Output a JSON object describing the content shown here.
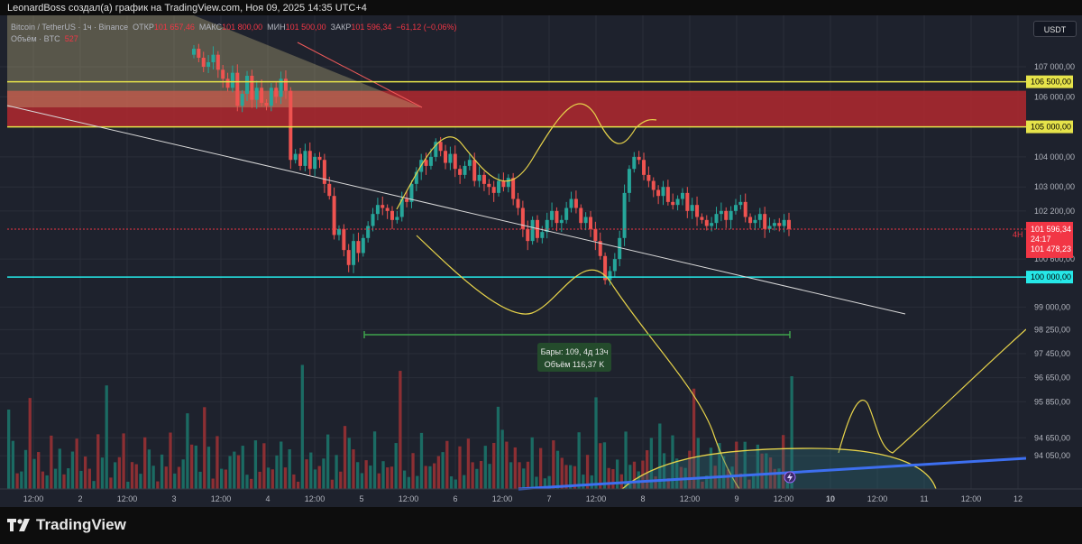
{
  "caption": "LeonardBoss создал(а) график на TradingView.com, Ноя 09, 2025 14:35 UTC+4",
  "legend": {
    "symbol": "Bitcoin / TetherUS · 1ч · Binance",
    "open_label": "ОТКР",
    "open": "101 657,46",
    "high_label": "МАКС",
    "high": "101 800,00",
    "low_label": "МИН",
    "low": "101 500,00",
    "close_label": "ЗАКР",
    "close": "101 596,34",
    "change": "−61,12 (−0,06%)",
    "volume_label": "Объём · BTC",
    "volume": "527"
  },
  "currency": "USDT",
  "measure": {
    "bars": "Бары: 109, 4д 13ч",
    "volume": "Объём 116,37 K"
  },
  "brand": "TradingView",
  "chart_data": {
    "type": "candlestick",
    "symbol": "BTCUSDT",
    "interval": "1h",
    "y_ticks": [
      107000,
      106000,
      104000,
      103000,
      102200,
      100600,
      99000,
      98250,
      97450,
      96650,
      95850,
      94650,
      94050
    ],
    "y_tick_labels": [
      "107 000,00",
      "106 000,00",
      "104 000,00",
      "103 000,00",
      "102 200,00",
      "100 600,00",
      "99 000,00",
      "98 250,00",
      "97 450,00",
      "96 650,00",
      "95 850,00",
      "94 650,00",
      "94 050,00"
    ],
    "x_tick_labels": [
      "12:00",
      "2",
      "12:00",
      "3",
      "12:00",
      "4",
      "12:00",
      "5",
      "12:00",
      "6",
      "12:00",
      "7",
      "12:00",
      "8",
      "12:00",
      "9",
      "12:00",
      "10",
      "12:00",
      "11",
      "12:00",
      "12"
    ],
    "horizontal_levels": [
      {
        "value": 106500,
        "label": "106 500,00",
        "color": "#e6e34a"
      },
      {
        "value": 105000,
        "label": "105 000,00",
        "color": "#e6e34a"
      },
      {
        "value": 100000,
        "label": "100 000,00",
        "color": "#26e8e8"
      }
    ],
    "resistance_zone": {
      "from": 105000,
      "to": 106200,
      "color": "#b2282f"
    },
    "last_price": {
      "value": 101596.34,
      "label": "101 596,34",
      "countdown": "24:17",
      "color": "#f23645"
    },
    "line_label": {
      "value": 101478.23,
      "label": "101 478,23"
    },
    "side_tag": "4H",
    "candles_close": [
      107600,
      107300,
      107000,
      107150,
      107400,
      106900,
      106600,
      106300,
      106800,
      105700,
      106100,
      106700,
      105900,
      106300,
      105800,
      105700,
      106300,
      106000,
      106600,
      106200,
      103900,
      104100,
      103700,
      104200,
      103600,
      104000,
      103900,
      103100,
      102700,
      101400,
      101600,
      100900,
      100400,
      101200,
      100800,
      101300,
      101700,
      102100,
      102400,
      102300,
      102200,
      101900,
      102000,
      102600,
      102500,
      103100,
      103500,
      103900,
      103700,
      104000,
      104500,
      104200,
      103800,
      104100,
      103600,
      103400,
      103700,
      103900,
      103200,
      103400,
      103100,
      103000,
      102800,
      103200,
      103000,
      103300,
      102600,
      102300,
      101600,
      101200,
      101900,
      101300,
      101500,
      101900,
      102200,
      101800,
      101900,
      102300,
      102600,
      102300,
      101800,
      102000,
      101600,
      101200,
      100700,
      99900,
      100200,
      100600,
      101300,
      102800,
      103600,
      104000,
      103900,
      103400,
      103200,
      102900,
      102700,
      103000,
      102500,
      102400,
      102600,
      102800,
      102200,
      102400,
      102000,
      101900,
      101700,
      101800,
      102100,
      102200,
      101900,
      102200,
      102400,
      102500,
      102000,
      101800,
      101900,
      102100,
      101600,
      101700,
      101800,
      101700,
      101900,
      101600
    ]
  }
}
